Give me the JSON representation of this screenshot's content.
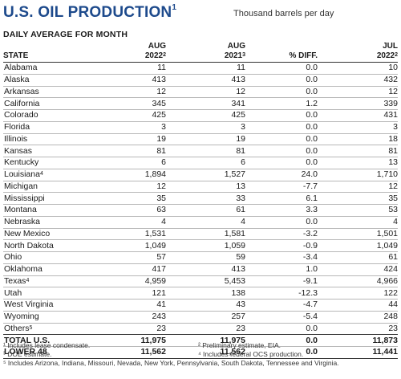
{
  "header": {
    "title": "U.S. OIL PRODUCTION",
    "title_note": "1",
    "units": "Thousand barrels per day",
    "subtitle": "DAILY AVERAGE FOR MONTH"
  },
  "table": {
    "columns": [
      {
        "line1": "",
        "line2": "STATE",
        "note": ""
      },
      {
        "line1": "AUG",
        "line2": "2022",
        "note": "2"
      },
      {
        "line1": "AUG",
        "line2": "2021",
        "note": "3"
      },
      {
        "line1": "",
        "line2": "% DIFF.",
        "note": ""
      },
      {
        "line1": "JUL",
        "line2": "2022",
        "note": "2"
      }
    ],
    "rows": [
      {
        "state": "Alabama",
        "note": "",
        "aug22": "11",
        "aug21": "11",
        "diff": "0.0",
        "jul22": "10"
      },
      {
        "state": "Alaska",
        "note": "",
        "aug22": "413",
        "aug21": "413",
        "diff": "0.0",
        "jul22": "432"
      },
      {
        "state": "Arkansas",
        "note": "",
        "aug22": "12",
        "aug21": "12",
        "diff": "0.0",
        "jul22": "12"
      },
      {
        "state": "California",
        "note": "",
        "aug22": "345",
        "aug21": "341",
        "diff": "1.2",
        "jul22": "339"
      },
      {
        "state": "Colorado",
        "note": "",
        "aug22": "425",
        "aug21": "425",
        "diff": "0.0",
        "jul22": "431"
      },
      {
        "state": "Florida",
        "note": "",
        "aug22": "3",
        "aug21": "3",
        "diff": "0.0",
        "jul22": "3"
      },
      {
        "state": "Illinois",
        "note": "",
        "aug22": "19",
        "aug21": "19",
        "diff": "0.0",
        "jul22": "18"
      },
      {
        "state": "Kansas",
        "note": "",
        "aug22": "81",
        "aug21": "81",
        "diff": "0.0",
        "jul22": "81"
      },
      {
        "state": "Kentucky",
        "note": "",
        "aug22": "6",
        "aug21": "6",
        "diff": "0.0",
        "jul22": "13"
      },
      {
        "state": "Louisiana",
        "note": "4",
        "aug22": "1,894",
        "aug21": "1,527",
        "diff": "24.0",
        "jul22": "1,710"
      },
      {
        "state": "Michigan",
        "note": "",
        "aug22": "12",
        "aug21": "13",
        "diff": "-7.7",
        "jul22": "12"
      },
      {
        "state": "Mississippi",
        "note": "",
        "aug22": "35",
        "aug21": "33",
        "diff": "6.1",
        "jul22": "35"
      },
      {
        "state": "Montana",
        "note": "",
        "aug22": "63",
        "aug21": "61",
        "diff": "3.3",
        "jul22": "53"
      },
      {
        "state": "Nebraska",
        "note": "",
        "aug22": "4",
        "aug21": "4",
        "diff": "0.0",
        "jul22": "4"
      },
      {
        "state": "New Mexico",
        "note": "",
        "aug22": "1,531",
        "aug21": "1,581",
        "diff": "-3.2",
        "jul22": "1,501"
      },
      {
        "state": "North Dakota",
        "note": "",
        "aug22": "1,049",
        "aug21": "1,059",
        "diff": "-0.9",
        "jul22": "1,049"
      },
      {
        "state": "Ohio",
        "note": "",
        "aug22": "57",
        "aug21": "59",
        "diff": "-3.4",
        "jul22": "61"
      },
      {
        "state": "Oklahoma",
        "note": "",
        "aug22": "417",
        "aug21": "413",
        "diff": "1.0",
        "jul22": "424"
      },
      {
        "state": "Texas",
        "note": "4",
        "aug22": "4,959",
        "aug21": "5,453",
        "diff": "-9.1",
        "jul22": "4,966"
      },
      {
        "state": "Utah",
        "note": "",
        "aug22": "121",
        "aug21": "138",
        "diff": "-12.3",
        "jul22": "122"
      },
      {
        "state": "West Virginia",
        "note": "",
        "aug22": "41",
        "aug21": "43",
        "diff": "-4.7",
        "jul22": "44"
      },
      {
        "state": "Wyoming",
        "note": "",
        "aug22": "243",
        "aug21": "257",
        "diff": "-5.4",
        "jul22": "248"
      },
      {
        "state": "Others",
        "note": "5",
        "aug22": "23",
        "aug21": "23",
        "diff": "0.0",
        "jul22": "23"
      }
    ],
    "totals": [
      {
        "state": "TOTAL U.S.",
        "note": "",
        "aug22": "11,975",
        "aug21": "11,975",
        "diff": "0.0",
        "jul22": "11,873"
      },
      {
        "state": "LOWER 48",
        "note": "",
        "aug22": "11,562",
        "aug21": "11,562",
        "diff": "0.0",
        "jul22": "11,441"
      }
    ]
  },
  "footnotes": [
    {
      "left": "¹ Includes lease condensate.",
      "right": "² Preliminary estimate, EIA."
    },
    {
      "left": "³ DOE estimate.",
      "right": "⁴ Includes federal OCS production."
    },
    {
      "left": "⁵ Includes Arizona, Indiana, Missouri, Nevada, New York, Pennsylvania, South Dakota, Tennessee and Virginia.",
      "right": ""
    }
  ]
}
